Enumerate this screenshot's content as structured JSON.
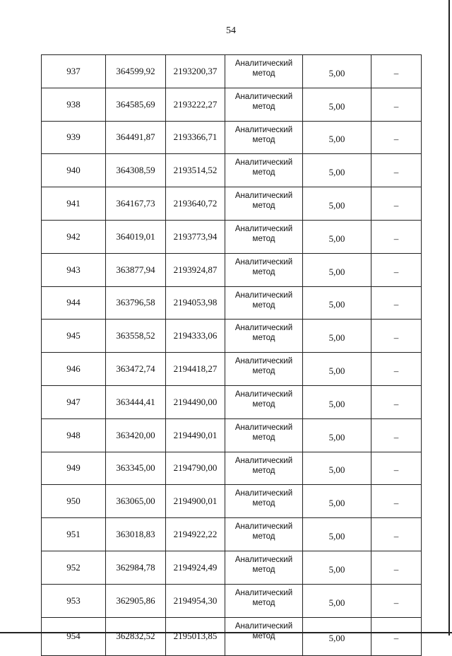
{
  "page_number": "54",
  "rows": [
    {
      "n": "937",
      "x": "364599,92",
      "y": "2193200,37",
      "method": "Аналитический метод",
      "accuracy": "5,00",
      "note": "–"
    },
    {
      "n": "938",
      "x": "364585,69",
      "y": "2193222,27",
      "method": "Аналитический метод",
      "accuracy": "5,00",
      "note": "–"
    },
    {
      "n": "939",
      "x": "364491,87",
      "y": "2193366,71",
      "method": "Аналитический метод",
      "accuracy": "5,00",
      "note": "–"
    },
    {
      "n": "940",
      "x": "364308,59",
      "y": "2193514,52",
      "method": "Аналитический метод",
      "accuracy": "5,00",
      "note": "–"
    },
    {
      "n": "941",
      "x": "364167,73",
      "y": "2193640,72",
      "method": "Аналитический метод",
      "accuracy": "5,00",
      "note": "–"
    },
    {
      "n": "942",
      "x": "364019,01",
      "y": "2193773,94",
      "method": "Аналитический метод",
      "accuracy": "5,00",
      "note": "–"
    },
    {
      "n": "943",
      "x": "363877,94",
      "y": "2193924,87",
      "method": "Аналитический метод",
      "accuracy": "5,00",
      "note": "–"
    },
    {
      "n": "944",
      "x": "363796,58",
      "y": "2194053,98",
      "method": "Аналитический метод",
      "accuracy": "5,00",
      "note": "–"
    },
    {
      "n": "945",
      "x": "363558,52",
      "y": "2194333,06",
      "method": "Аналитический метод",
      "accuracy": "5,00",
      "note": "–"
    },
    {
      "n": "946",
      "x": "363472,74",
      "y": "2194418,27",
      "method": "Аналитический метод",
      "accuracy": "5,00",
      "note": "–"
    },
    {
      "n": "947",
      "x": "363444,41",
      "y": "2194490,00",
      "method": "Аналитический метод",
      "accuracy": "5,00",
      "note": "–"
    },
    {
      "n": "948",
      "x": "363420,00",
      "y": "2194490,01",
      "method": "Аналитический метод",
      "accuracy": "5,00",
      "note": "–"
    },
    {
      "n": "949",
      "x": "363345,00",
      "y": "2194790,00",
      "method": "Аналитический метод",
      "accuracy": "5,00",
      "note": "–"
    },
    {
      "n": "950",
      "x": "363065,00",
      "y": "2194900,01",
      "method": "Аналитический метод",
      "accuracy": "5,00",
      "note": "–"
    },
    {
      "n": "951",
      "x": "363018,83",
      "y": "2194922,22",
      "method": "Аналитический метод",
      "accuracy": "5,00",
      "note": "–"
    },
    {
      "n": "952",
      "x": "362984,78",
      "y": "2194924,49",
      "method": "Аналитический метод",
      "accuracy": "5,00",
      "note": "–"
    },
    {
      "n": "953",
      "x": "362905,86",
      "y": "2194954,30",
      "method": "Аналитический метод",
      "accuracy": "5,00",
      "note": "–"
    },
    {
      "n": "954",
      "x": "362832,52",
      "y": "2195013,85",
      "method": "Аналитический метод",
      "accuracy": "5,00",
      "note": "–"
    }
  ]
}
